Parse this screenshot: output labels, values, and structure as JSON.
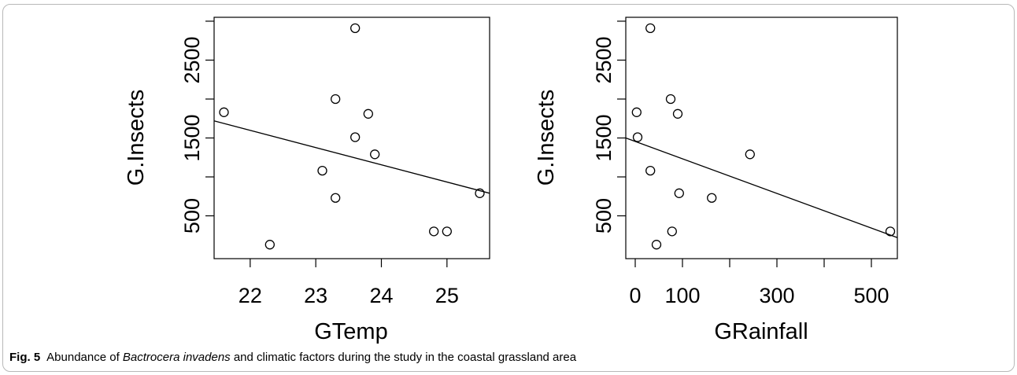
{
  "caption": {
    "label": "Fig. 5",
    "text_before": "Abundance of ",
    "species": "Bactrocera invadens",
    "text_after": " and climatic factors during the study in the coastal grassland area"
  },
  "chart_data": [
    {
      "type": "scatter",
      "title": "",
      "xlabel": "GTemp",
      "ylabel": "G.Insects",
      "xlim": [
        21.45,
        25.65
      ],
      "ylim": [
        -50,
        3050
      ],
      "xticks": [
        22,
        23,
        24,
        25
      ],
      "yticks": [
        500,
        1500,
        2500
      ],
      "yminor": [
        1000,
        2000,
        3000
      ],
      "points": [
        {
          "x": 21.6,
          "y": 1830
        },
        {
          "x": 22.3,
          "y": 130
        },
        {
          "x": 23.1,
          "y": 1080
        },
        {
          "x": 23.3,
          "y": 2000
        },
        {
          "x": 23.3,
          "y": 730
        },
        {
          "x": 23.6,
          "y": 2910
        },
        {
          "x": 23.6,
          "y": 1510
        },
        {
          "x": 23.8,
          "y": 1810
        },
        {
          "x": 23.9,
          "y": 1290
        },
        {
          "x": 24.8,
          "y": 300
        },
        {
          "x": 25.0,
          "y": 300
        },
        {
          "x": 25.5,
          "y": 790
        }
      ],
      "fit_line": {
        "x1": 21.45,
        "y1": 1720,
        "x2": 25.65,
        "y2": 790
      }
    },
    {
      "type": "scatter",
      "title": "",
      "xlabel": "GRainfall",
      "ylabel": "G.Insects",
      "xlim": [
        -20,
        555
      ],
      "ylim": [
        -50,
        3050
      ],
      "xticks": [
        0,
        100,
        300,
        500
      ],
      "xminor": [
        200,
        400
      ],
      "yticks": [
        500,
        1500,
        2500
      ],
      "yminor": [
        1000,
        2000,
        3000
      ],
      "points": [
        {
          "x": 3,
          "y": 1830
        },
        {
          "x": 5,
          "y": 1510
        },
        {
          "x": 32,
          "y": 2910
        },
        {
          "x": 32,
          "y": 1080
        },
        {
          "x": 45,
          "y": 130
        },
        {
          "x": 75,
          "y": 2000
        },
        {
          "x": 78,
          "y": 300
        },
        {
          "x": 90,
          "y": 1810
        },
        {
          "x": 93,
          "y": 790
        },
        {
          "x": 162,
          "y": 730
        },
        {
          "x": 243,
          "y": 1290
        },
        {
          "x": 540,
          "y": 300
        }
      ],
      "fit_line": {
        "x1": -20,
        "y1": 1500,
        "x2": 555,
        "y2": 220
      }
    }
  ]
}
